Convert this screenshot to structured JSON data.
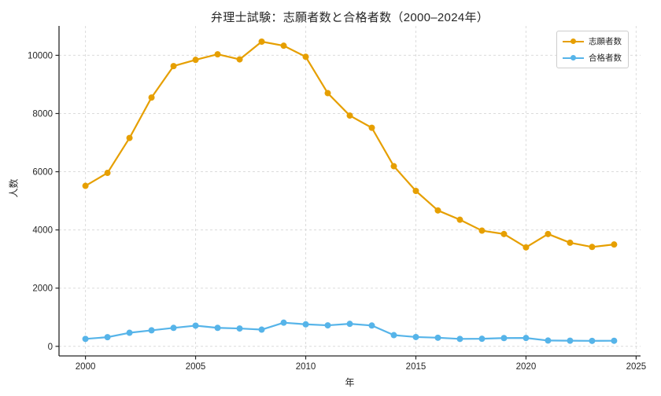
{
  "chart_data": {
    "type": "line",
    "title": "弁理士試験：志願者数と合格者数（2000–2024年）",
    "xlabel": "年",
    "ylabel": "人数",
    "x": [
      2000,
      2001,
      2002,
      2003,
      2004,
      2005,
      2006,
      2007,
      2008,
      2009,
      2010,
      2011,
      2012,
      2013,
      2014,
      2015,
      2016,
      2017,
      2018,
      2019,
      2020,
      2021,
      2022,
      2023,
      2024
    ],
    "series": [
      {
        "name": "志願者数",
        "color": "#E69F00",
        "values": [
          5515,
          5960,
          7160,
          8550,
          9630,
          9845,
          10035,
          9860,
          10470,
          10330,
          9950,
          8700,
          7930,
          7510,
          6190,
          5340,
          4670,
          4350,
          3975,
          3860,
          3400,
          3860,
          3560,
          3415,
          3500
        ]
      },
      {
        "name": "合格者数",
        "color": "#56B4E9",
        "values": [
          255,
          315,
          466,
          550,
          634,
          711,
          635,
          613,
          574,
          813,
          756,
          721,
          773,
          715,
          385,
          319,
          296,
          255,
          260,
          284,
          287,
          199,
          193,
          188,
          191
        ]
      }
    ],
    "xlim": [
      1998.8,
      2025.2
    ],
    "ylim": [
      -330,
      11010
    ],
    "xticks": [
      2000,
      2005,
      2010,
      2015,
      2020,
      2025
    ],
    "yticks": [
      0,
      2000,
      4000,
      6000,
      8000,
      10000
    ],
    "xtick_labels": [
      "2000",
      "2005",
      "2010",
      "2015",
      "2020",
      "2025"
    ],
    "ytick_labels": [
      "0",
      "2000",
      "4000",
      "6000",
      "8000",
      "10000"
    ],
    "grid": "dashed",
    "legend_position": "upper right",
    "colors": {
      "background": "#ffffff",
      "grid": "#dcdcdc",
      "axis": "#262626",
      "text": "#262626"
    }
  }
}
